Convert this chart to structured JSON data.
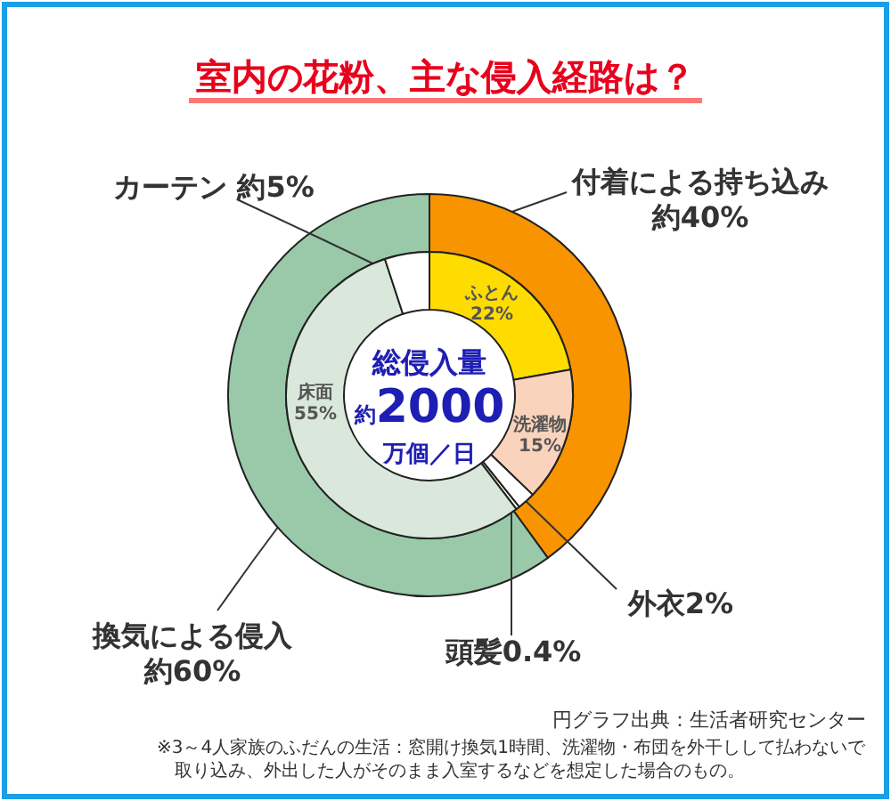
{
  "chart_data": [
    {
      "type": "donut",
      "title": "室内の花粉、主な侵入経路は？",
      "categories": [
        "付着による持ち込み",
        "換気による侵入"
      ],
      "values": [
        40,
        60
      ],
      "colors": [
        "#f79400",
        "#99c9a9"
      ],
      "value_labels": [
        "約40%",
        "約60%"
      ],
      "annotations": [
        "総侵入量",
        "約2000万個／日",
        "円グラフ出典：生活者研究センター",
        "※3～4人家族のふだんの生活：窓開け換気1時間、洗濯物・布団を外干しして払わないで取り込み、外出した人がそのまま入室するなどを想定した場合のもの。"
      ]
    },
    {
      "type": "donut",
      "categories": [
        "ふとん",
        "洗濯物",
        "外衣",
        "頭髪",
        "床面",
        "カーテン"
      ],
      "values": [
        22,
        15,
        2,
        0.4,
        55,
        5
      ],
      "colors": [
        "#ffdc00",
        "#fad3bc",
        "#ffffff",
        "#ffffff",
        "#d9e8da",
        "#ffffff"
      ],
      "value_labels": [
        "22%",
        "15%",
        "2%",
        "0.4%",
        "55%",
        "約5%"
      ]
    }
  ]
}
